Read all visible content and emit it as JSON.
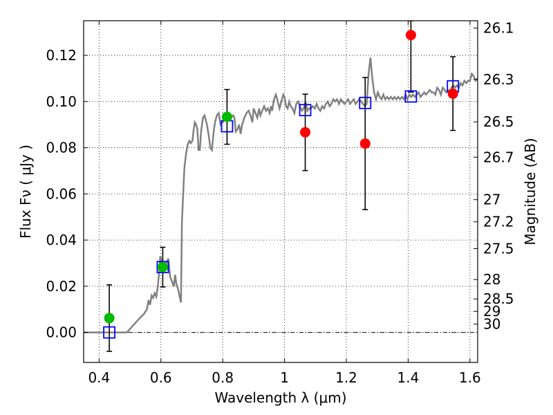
{
  "chart_data": {
    "type": "scatter",
    "xlabel": "Wavelength  λ (μm)",
    "ylabel": "Flux  Fν  ( μJy )",
    "ylabel_right": "Magnitude (AB)",
    "xlim": [
      0.35,
      1.625
    ],
    "ylim": [
      -0.013,
      0.135
    ],
    "x_ticks": [
      0.4,
      0.6,
      0.8,
      1.0,
      1.2,
      1.4,
      1.6
    ],
    "x_tick_labels": [
      "0.4",
      "0.6",
      "0.8",
      "1",
      "1.2",
      "1.4",
      "1.6"
    ],
    "y_ticks": [
      0.0,
      0.02,
      0.04,
      0.06,
      0.08,
      0.1,
      0.12
    ],
    "y_tick_labels": [
      "0.00",
      "0.02",
      "0.04",
      "0.06",
      "0.08",
      "0.10",
      "0.12"
    ],
    "right_ticks": [
      {
        "label": "26.1",
        "flux": 0.1318
      },
      {
        "label": "26.3",
        "flux": 0.1096
      },
      {
        "label": "26.5",
        "flux": 0.0912
      },
      {
        "label": "26.7",
        "flux": 0.0759
      },
      {
        "label": "27",
        "flux": 0.0575
      },
      {
        "label": "27.2",
        "flux": 0.0479
      },
      {
        "label": "27.5",
        "flux": 0.0363
      },
      {
        "label": "28",
        "flux": 0.0229
      },
      {
        "label": "28.5",
        "flux": 0.0145
      },
      {
        "label": "29",
        "flux": 0.0091
      },
      {
        "label": "30",
        "flux": 0.0036
      }
    ],
    "grid": true,
    "model_spectrum": {
      "color": "#808080",
      "points": [
        [
          0.35,
          0.0
        ],
        [
          0.49,
          0.0
        ],
        [
          0.51,
          0.003
        ],
        [
          0.53,
          0.006
        ],
        [
          0.545,
          0.008
        ],
        [
          0.555,
          0.01
        ],
        [
          0.56,
          0.014
        ],
        [
          0.565,
          0.012
        ],
        [
          0.57,
          0.016
        ],
        [
          0.575,
          0.015
        ],
        [
          0.58,
          0.017
        ],
        [
          0.585,
          0.0155
        ],
        [
          0.59,
          0.02
        ],
        [
          0.595,
          0.027
        ],
        [
          0.598,
          0.033
        ],
        [
          0.602,
          0.031
        ],
        [
          0.606,
          0.027
        ],
        [
          0.612,
          0.029
        ],
        [
          0.618,
          0.03
        ],
        [
          0.624,
          0.032
        ],
        [
          0.63,
          0.024
        ],
        [
          0.636,
          0.022
        ],
        [
          0.642,
          0.02
        ],
        [
          0.646,
          0.025
        ],
        [
          0.65,
          0.021
        ],
        [
          0.655,
          0.019
        ],
        [
          0.66,
          0.016
        ],
        [
          0.665,
          0.013
        ],
        [
          0.668,
          0.048
        ],
        [
          0.672,
          0.06
        ],
        [
          0.676,
          0.071
        ],
        [
          0.681,
          0.077
        ],
        [
          0.686,
          0.081
        ],
        [
          0.692,
          0.083
        ],
        [
          0.697,
          0.082
        ],
        [
          0.702,
          0.083
        ],
        [
          0.706,
          0.088
        ],
        [
          0.71,
          0.091
        ],
        [
          0.714,
          0.09
        ],
        [
          0.718,
          0.088
        ],
        [
          0.722,
          0.079
        ],
        [
          0.726,
          0.079
        ],
        [
          0.73,
          0.087
        ],
        [
          0.736,
          0.093
        ],
        [
          0.741,
          0.094
        ],
        [
          0.745,
          0.092
        ],
        [
          0.749,
          0.09
        ],
        [
          0.755,
          0.085
        ],
        [
          0.76,
          0.08
        ],
        [
          0.765,
          0.079
        ],
        [
          0.77,
          0.086
        ],
        [
          0.775,
          0.091
        ],
        [
          0.781,
          0.094
        ],
        [
          0.787,
          0.095
        ],
        [
          0.793,
          0.09
        ],
        [
          0.8,
          0.091
        ],
        [
          0.807,
          0.093
        ],
        [
          0.813,
          0.094
        ],
        [
          0.82,
          0.092
        ],
        [
          0.827,
          0.093
        ],
        [
          0.834,
          0.094
        ],
        [
          0.838,
          0.093
        ],
        [
          0.842,
          0.087
        ],
        [
          0.848,
          0.088
        ],
        [
          0.853,
          0.09
        ],
        [
          0.858,
          0.086
        ],
        [
          0.863,
          0.09
        ],
        [
          0.87,
          0.093
        ],
        [
          0.877,
          0.095
        ],
        [
          0.884,
          0.096
        ],
        [
          0.89,
          0.094
        ],
        [
          0.896,
          0.091
        ],
        [
          0.9,
          0.097
        ],
        [
          0.906,
          0.095
        ],
        [
          0.912,
          0.093
        ],
        [
          0.918,
          0.097
        ],
        [
          0.922,
          0.094
        ],
        [
          0.928,
          0.096
        ],
        [
          0.934,
          0.098
        ],
        [
          0.94,
          0.096
        ],
        [
          0.946,
          0.097
        ],
        [
          0.952,
          0.095
        ],
        [
          0.956,
          0.098
        ],
        [
          0.96,
          0.096
        ],
        [
          0.966,
          0.101
        ],
        [
          0.972,
          0.103
        ],
        [
          0.978,
          0.1
        ],
        [
          0.984,
          0.097
        ],
        [
          0.99,
          0.1
        ],
        [
          0.996,
          0.103
        ],
        [
          1.0,
          0.102
        ],
        [
          1.005,
          0.098
        ],
        [
          1.01,
          0.097
        ],
        [
          1.015,
          0.1
        ],
        [
          1.02,
          0.098
        ],
        [
          1.026,
          0.097
        ],
        [
          1.032,
          0.095
        ],
        [
          1.038,
          0.099
        ],
        [
          1.044,
          0.1
        ],
        [
          1.05,
          0.098
        ],
        [
          1.056,
          0.096
        ],
        [
          1.062,
          0.097
        ],
        [
          1.068,
          0.1
        ],
        [
          1.074,
          0.096
        ],
        [
          1.08,
          0.097
        ],
        [
          1.086,
          0.097
        ],
        [
          1.092,
          0.098
        ],
        [
          1.098,
          0.097
        ],
        [
          1.104,
          0.099
        ],
        [
          1.11,
          0.097
        ],
        [
          1.116,
          0.096
        ],
        [
          1.122,
          0.098
        ],
        [
          1.128,
          0.097
        ],
        [
          1.134,
          0.099
        ],
        [
          1.14,
          0.1
        ],
        [
          1.146,
          0.098
        ],
        [
          1.152,
          0.099
        ],
        [
          1.158,
          0.101
        ],
        [
          1.164,
          0.1
        ],
        [
          1.17,
          0.101
        ],
        [
          1.176,
          0.099
        ],
        [
          1.182,
          0.101
        ],
        [
          1.188,
          0.1
        ],
        [
          1.194,
          0.099
        ],
        [
          1.2,
          0.1
        ],
        [
          1.206,
          0.101
        ],
        [
          1.212,
          0.099
        ],
        [
          1.218,
          0.1
        ],
        [
          1.224,
          0.101
        ],
        [
          1.23,
          0.099
        ],
        [
          1.236,
          0.1
        ],
        [
          1.242,
          0.101
        ],
        [
          1.248,
          0.1
        ],
        [
          1.254,
          0.099
        ],
        [
          1.26,
          0.098
        ],
        [
          1.266,
          0.099
        ],
        [
          1.272,
          0.112
        ],
        [
          1.278,
          0.119
        ],
        [
          1.284,
          0.11
        ],
        [
          1.29,
          0.104
        ],
        [
          1.296,
          0.101
        ],
        [
          1.302,
          0.104
        ],
        [
          1.308,
          0.102
        ],
        [
          1.314,
          0.101
        ],
        [
          1.32,
          0.103
        ],
        [
          1.326,
          0.101
        ],
        [
          1.332,
          0.102
        ],
        [
          1.338,
          0.101
        ],
        [
          1.344,
          0.102
        ],
        [
          1.35,
          0.101
        ],
        [
          1.356,
          0.102
        ],
        [
          1.362,
          0.101
        ],
        [
          1.368,
          0.102
        ],
        [
          1.374,
          0.101
        ],
        [
          1.38,
          0.102
        ],
        [
          1.386,
          0.101
        ],
        [
          1.392,
          0.103
        ],
        [
          1.398,
          0.101
        ],
        [
          1.404,
          0.103
        ],
        [
          1.41,
          0.102
        ],
        [
          1.416,
          0.103
        ],
        [
          1.422,
          0.102
        ],
        [
          1.428,
          0.103
        ],
        [
          1.434,
          0.104
        ],
        [
          1.44,
          0.102
        ],
        [
          1.446,
          0.103
        ],
        [
          1.452,
          0.104
        ],
        [
          1.458,
          0.103
        ],
        [
          1.464,
          0.104
        ],
        [
          1.47,
          0.105
        ],
        [
          1.476,
          0.104
        ],
        [
          1.482,
          0.104
        ],
        [
          1.488,
          0.103
        ],
        [
          1.494,
          0.106
        ],
        [
          1.5,
          0.105
        ],
        [
          1.506,
          0.103
        ],
        [
          1.512,
          0.106
        ],
        [
          1.518,
          0.105
        ],
        [
          1.524,
          0.104
        ],
        [
          1.53,
          0.105
        ],
        [
          1.536,
          0.104
        ],
        [
          1.54,
          0.106
        ],
        [
          1.546,
          0.107
        ],
        [
          1.552,
          0.106
        ],
        [
          1.558,
          0.107
        ],
        [
          1.564,
          0.106
        ],
        [
          1.57,
          0.108
        ],
        [
          1.576,
          0.107
        ],
        [
          1.582,
          0.109
        ],
        [
          1.588,
          0.108
        ],
        [
          1.594,
          0.109
        ],
        [
          1.6,
          0.109
        ],
        [
          1.606,
          0.112
        ],
        [
          1.612,
          0.111
        ],
        [
          1.618,
          0.109
        ],
        [
          1.625,
          0.11
        ]
      ]
    },
    "error_bars": [
      {
        "x": 0.433,
        "y": 0.0062,
        "lo": -0.0082,
        "hi": 0.0206
      },
      {
        "x": 0.606,
        "y": 0.0283,
        "lo": 0.0197,
        "hi": 0.0369
      },
      {
        "x": 0.814,
        "y": 0.0934,
        "lo": 0.0815,
        "hi": 0.1052
      },
      {
        "x": 1.067,
        "y": 0.0867,
        "lo": 0.0701,
        "hi": 0.1032
      },
      {
        "x": 1.261,
        "y": 0.0818,
        "lo": 0.0532,
        "hi": 0.1104
      },
      {
        "x": 1.409,
        "y": 0.1288,
        "lo": 0.1041,
        "hi": 0.135
      },
      {
        "x": 1.545,
        "y": 0.1034,
        "lo": 0.0875,
        "hi": 0.1194
      }
    ],
    "model_photometry": {
      "marker": "open-square",
      "color": "#0000ff",
      "points": [
        [
          0.433,
          0.0
        ],
        [
          0.606,
          0.0283
        ],
        [
          0.814,
          0.0893
        ],
        [
          1.067,
          0.0963
        ],
        [
          1.261,
          0.0994
        ],
        [
          1.409,
          0.1022
        ],
        [
          1.545,
          0.1066
        ]
      ]
    },
    "detections": {
      "marker": "circle",
      "color": "#00bb00",
      "points": [
        [
          0.433,
          0.0062
        ],
        [
          0.606,
          0.0283
        ],
        [
          0.814,
          0.0934
        ]
      ]
    },
    "non_detections": {
      "marker": "circle",
      "color": "#ff0000",
      "points": [
        [
          1.067,
          0.0867
        ],
        [
          1.261,
          0.0818
        ],
        [
          1.409,
          0.1288
        ],
        [
          1.545,
          0.1034
        ]
      ]
    }
  }
}
